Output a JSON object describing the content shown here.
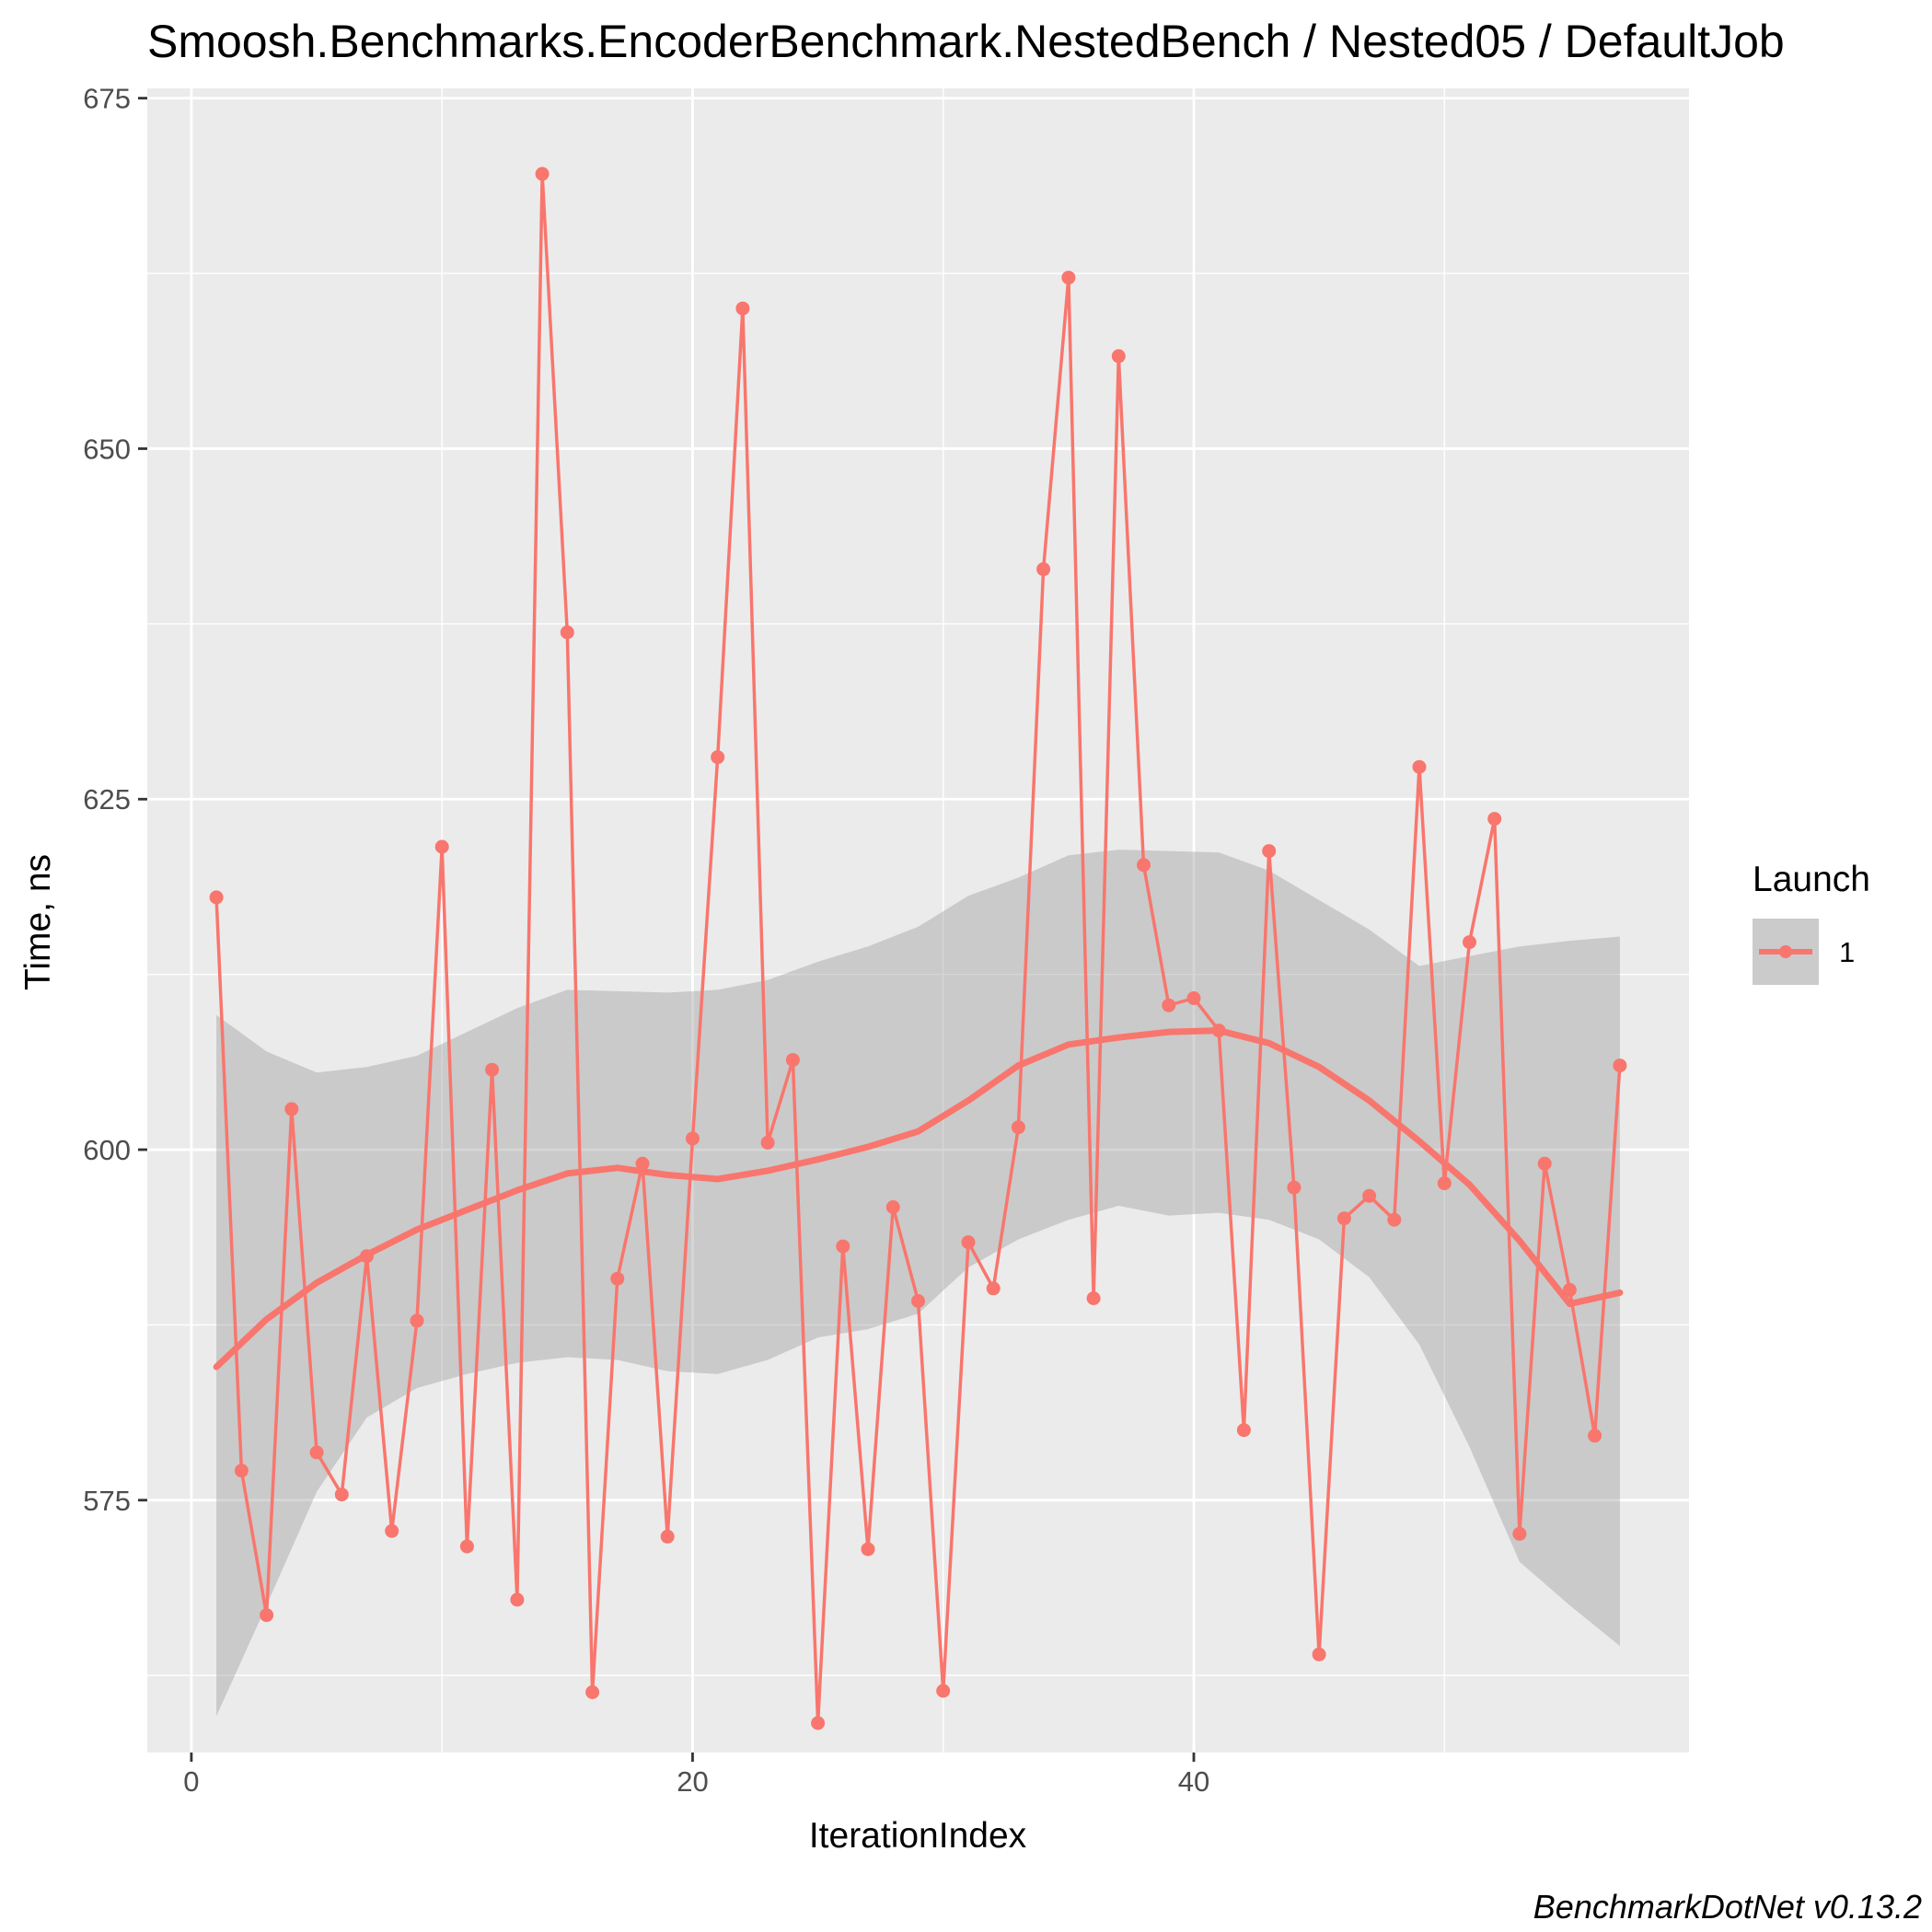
{
  "chart_data": {
    "type": "line",
    "title": "Smoosh.Benchmarks.EncoderBenchmark.NestedBench / Nested05 / DefaultJob",
    "caption": "BenchmarkDotNet v0.13.2",
    "xlabel": "IterationIndex",
    "ylabel": "Time, ns",
    "xlim": [
      -1.76,
      59.76
    ],
    "ylim": [
      557.0,
      675.7
    ],
    "x_ticks": [
      0,
      20,
      40
    ],
    "y_ticks": [
      575,
      600,
      625,
      650,
      675
    ],
    "grid": true,
    "legend": {
      "title": "Launch",
      "entries": [
        "1"
      ],
      "position": "right"
    },
    "series": [
      {
        "name": "1",
        "color": "#F8766D",
        "x": [
          1,
          2,
          3,
          4,
          5,
          6,
          7,
          8,
          9,
          10,
          11,
          12,
          13,
          14,
          15,
          16,
          17,
          18,
          19,
          20,
          21,
          22,
          23,
          24,
          25,
          26,
          27,
          28,
          29,
          30,
          31,
          32,
          33,
          34,
          35,
          36,
          37,
          38,
          39,
          40,
          41,
          42,
          43,
          44,
          45,
          46,
          47,
          48,
          49,
          50,
          51,
          52,
          53,
          54,
          55,
          56,
          57
        ],
        "values": [
          618.0,
          577.1,
          566.8,
          602.9,
          578.4,
          575.4,
          592.4,
          572.8,
          587.8,
          621.6,
          571.7,
          605.7,
          567.9,
          669.6,
          636.9,
          561.3,
          590.8,
          599.0,
          572.4,
          600.8,
          628.0,
          660.0,
          600.5,
          606.4,
          559.1,
          593.1,
          571.5,
          595.9,
          589.2,
          561.4,
          593.4,
          590.1,
          601.6,
          641.4,
          662.2,
          589.4,
          656.6,
          620.3,
          610.3,
          610.8,
          608.5,
          580.0,
          621.3,
          597.3,
          564.0,
          595.1,
          596.7,
          595.0,
          627.3,
          597.6,
          614.8,
          623.6,
          572.6,
          599.0,
          590.0,
          579.6,
          606.0
        ]
      }
    ],
    "smooth": {
      "method": "loess",
      "x": [
        1,
        3,
        5,
        7,
        9,
        11,
        13,
        15,
        17,
        19,
        21,
        23,
        25,
        27,
        29,
        31,
        33,
        35,
        37,
        39,
        41,
        43,
        45,
        47,
        49,
        51,
        53,
        55,
        57
      ],
      "y": [
        584.5,
        587.9,
        590.5,
        592.5,
        594.3,
        595.7,
        597.1,
        598.3,
        598.7,
        598.2,
        597.9,
        598.5,
        599.3,
        600.2,
        601.3,
        603.5,
        606.0,
        607.5,
        608.0,
        608.4,
        608.5,
        607.6,
        605.9,
        603.5,
        600.6,
        597.5,
        593.5,
        589.0,
        589.8
      ],
      "lower": [
        559.6,
        567.5,
        575.6,
        580.9,
        583.0,
        584.0,
        584.8,
        585.2,
        585.0,
        584.2,
        584.0,
        585.0,
        586.6,
        587.2,
        588.3,
        591.6,
        593.6,
        595.0,
        596.0,
        595.3,
        595.5,
        595.0,
        593.6,
        590.9,
        586.1,
        578.8,
        570.6,
        567.5,
        564.6
      ],
      "upper": [
        609.6,
        607.0,
        605.5,
        605.9,
        606.7,
        608.4,
        610.1,
        611.4,
        611.3,
        611.2,
        611.4,
        612.1,
        613.4,
        614.5,
        615.9,
        618.1,
        619.4,
        621.0,
        621.4,
        621.3,
        621.2,
        619.9,
        617.8,
        615.7,
        613.1,
        613.8,
        614.5,
        614.9,
        615.2
      ]
    }
  }
}
